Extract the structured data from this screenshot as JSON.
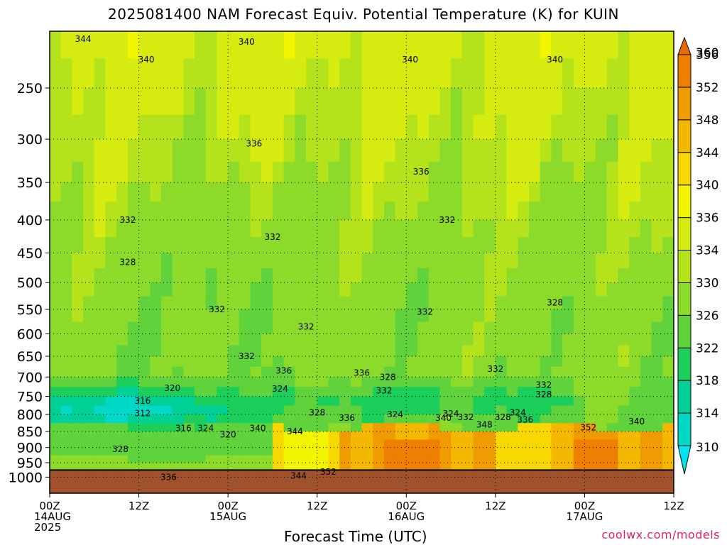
{
  "title": "2025081400 NAM Forecast Equiv. Potential Temperature (K) for KUIN",
  "credit": "coolwx.com/models",
  "chart_data": {
    "type": "heatmap",
    "title": "2025081400 NAM Forecast Equiv. Potential Temperature (K) for KUIN",
    "xlabel": "Forecast Time (UTC)",
    "ylabel": "",
    "x_ticks": [
      {
        "hour": 0,
        "lines": [
          "00Z",
          "14AUG",
          "2025"
        ]
      },
      {
        "hour": 12,
        "lines": [
          "12Z"
        ]
      },
      {
        "hour": 24,
        "lines": [
          "00Z",
          "15AUG"
        ]
      },
      {
        "hour": 36,
        "lines": [
          "12Z"
        ]
      },
      {
        "hour": 48,
        "lines": [
          "00Z",
          "16AUG"
        ]
      },
      {
        "hour": 60,
        "lines": [
          "12Z"
        ]
      },
      {
        "hour": 72,
        "lines": [
          "00Z",
          "17AUG"
        ]
      },
      {
        "hour": 84,
        "lines": [
          "12Z"
        ]
      }
    ],
    "xlim": [
      0,
      84
    ],
    "y_ticks": [
      250,
      300,
      350,
      400,
      450,
      500,
      550,
      600,
      650,
      700,
      750,
      800,
      850,
      900,
      950,
      1000
    ],
    "ylim": [
      1025,
      200
    ],
    "y_scale": "log-pressure",
    "y_units": "hPa",
    "colorbar": {
      "levels": [
        310,
        314,
        318,
        322,
        326,
        330,
        334,
        336,
        340,
        344,
        348,
        352,
        356,
        360
      ],
      "labels": [
        "310",
        "314",
        "318",
        "322",
        "326",
        "330",
        "334",
        "336",
        "340",
        "344",
        "348",
        "352",
        "356",
        "360"
      ],
      "colors": [
        "#00e5ef",
        "#00d9c6",
        "#00cf96",
        "#1ccf5a",
        "#5fd23c",
        "#8cda2a",
        "#b4e31c",
        "#d6ec10",
        "#f2f500",
        "#f8d800",
        "#f5b800",
        "#f09c00",
        "#ee7f00",
        "#e86a00"
      ]
    },
    "contour_labels": [
      {
        "hour": 4.5,
        "p": 210,
        "text": "344"
      },
      {
        "hour": 26.5,
        "p": 212,
        "text": "340"
      },
      {
        "hour": 13,
        "p": 226,
        "text": "340"
      },
      {
        "hour": 48.5,
        "p": 226,
        "text": "340"
      },
      {
        "hour": 68,
        "p": 226,
        "text": "340"
      },
      {
        "hour": 27.5,
        "p": 305,
        "text": "336"
      },
      {
        "hour": 50,
        "p": 337,
        "text": "336"
      },
      {
        "hour": 10.5,
        "p": 400,
        "text": "332"
      },
      {
        "hour": 53.5,
        "p": 400,
        "text": "332"
      },
      {
        "hour": 30,
        "p": 425,
        "text": "332"
      },
      {
        "hour": 10.5,
        "p": 465,
        "text": "328"
      },
      {
        "hour": 68,
        "p": 537,
        "text": "328"
      },
      {
        "hour": 22.5,
        "p": 550,
        "text": "332"
      },
      {
        "hour": 50.5,
        "p": 555,
        "text": "332"
      },
      {
        "hour": 34.5,
        "p": 585,
        "text": "332"
      },
      {
        "hour": 26.5,
        "p": 650,
        "text": "332"
      },
      {
        "hour": 31.5,
        "p": 685,
        "text": "336"
      },
      {
        "hour": 45.5,
        "p": 700,
        "text": "328"
      },
      {
        "hour": 42,
        "p": 690,
        "text": "336"
      },
      {
        "hour": 60,
        "p": 680,
        "text": "332"
      },
      {
        "hour": 31,
        "p": 730,
        "text": "324"
      },
      {
        "hour": 45,
        "p": 735,
        "text": "332"
      },
      {
        "hour": 66.5,
        "p": 720,
        "text": "332"
      },
      {
        "hour": 66.5,
        "p": 745,
        "text": "328"
      },
      {
        "hour": 16.5,
        "p": 728,
        "text": "320"
      },
      {
        "hour": 12.5,
        "p": 762,
        "text": "316"
      },
      {
        "hour": 12.5,
        "p": 797,
        "text": "312"
      },
      {
        "hour": 36,
        "p": 795,
        "text": "328"
      },
      {
        "hour": 40,
        "p": 810,
        "text": "336"
      },
      {
        "hour": 46.5,
        "p": 800,
        "text": "324"
      },
      {
        "hour": 53,
        "p": 810,
        "text": "340"
      },
      {
        "hour": 54,
        "p": 798,
        "text": "324"
      },
      {
        "hour": 56,
        "p": 808,
        "text": "332"
      },
      {
        "hour": 58.5,
        "p": 830,
        "text": "348"
      },
      {
        "hour": 61,
        "p": 808,
        "text": "328"
      },
      {
        "hour": 63,
        "p": 795,
        "text": "324"
      },
      {
        "hour": 64,
        "p": 815,
        "text": "336"
      },
      {
        "hour": 72.5,
        "p": 838,
        "text": "352"
      },
      {
        "hour": 79,
        "p": 820,
        "text": "340"
      },
      {
        "hour": 18,
        "p": 840,
        "text": "316"
      },
      {
        "hour": 21,
        "p": 840,
        "text": "324"
      },
      {
        "hour": 24,
        "p": 860,
        "text": "320"
      },
      {
        "hour": 28,
        "p": 840,
        "text": "340"
      },
      {
        "hour": 33,
        "p": 850,
        "text": "344"
      },
      {
        "hour": 9.5,
        "p": 905,
        "text": "328"
      },
      {
        "hour": 16,
        "p": 1000,
        "text": "336"
      },
      {
        "hour": 33.5,
        "p": 995,
        "text": "344"
      },
      {
        "hour": 37.5,
        "p": 982,
        "text": "352"
      }
    ]
  }
}
